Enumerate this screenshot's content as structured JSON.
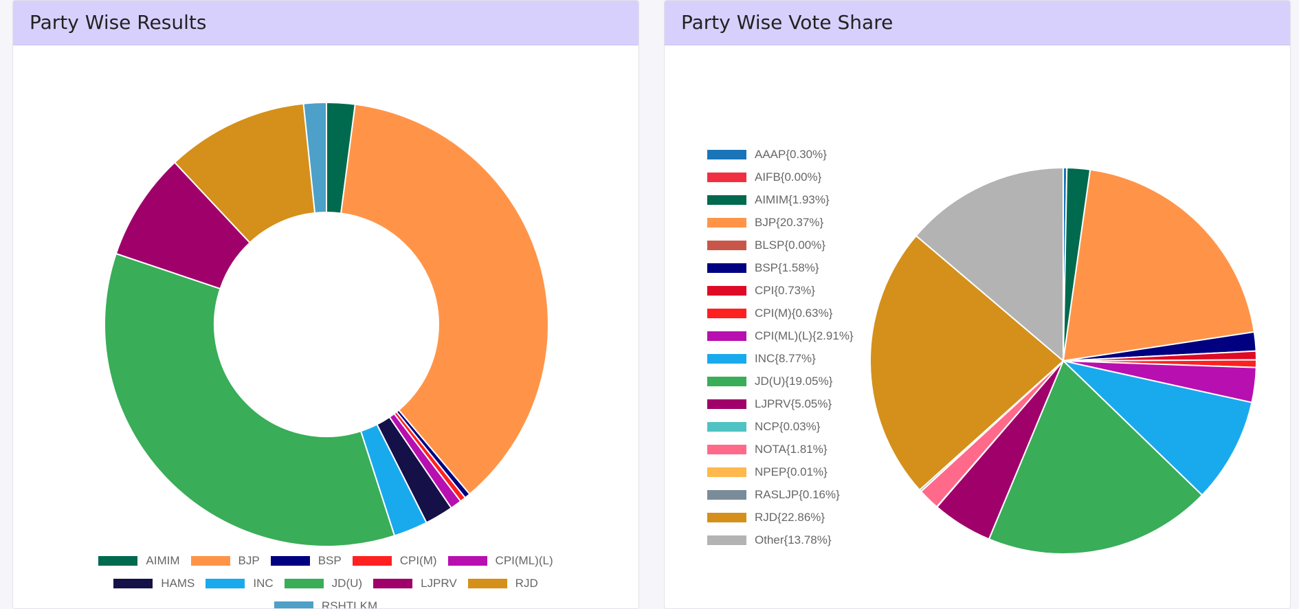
{
  "chart_data": [
    {
      "type": "donut",
      "title": "Party Wise Results",
      "categories": [
        "AIMIM",
        "BJP",
        "BSP",
        "CPI(M)",
        "CPI(ML)(L)",
        "HAMS",
        "INC",
        "JD(U)",
        "LJPRV",
        "RJD",
        "RSHTLKM"
      ],
      "values": [
        5,
        89,
        1,
        1,
        2,
        5,
        6,
        85,
        19,
        25,
        4
      ],
      "colors": [
        "#006a4e",
        "#ff9448",
        "#000080",
        "#ff2020",
        "#b80fb0",
        "#151148",
        "#19aaed",
        "#39ad58",
        "#a0006a",
        "#d4901a",
        "#4da0c8"
      ],
      "legend": "bottom"
    },
    {
      "type": "pie",
      "title": "Party Wise Vote Share",
      "categories": [
        "AAAP{0.30%}",
        "AIFB{0.00%}",
        "AIMIM{1.93%}",
        "BJP{20.37%}",
        "BLSP{0.00%}",
        "BSP{1.58%}",
        "CPI{0.73%}",
        "CPI(M){0.63%}",
        "CPI(ML)(L){2.91%}",
        "INC{8.77%}",
        "JD(U){19.05%}",
        "LJPRV{5.05%}",
        "NCP{0.03%}",
        "NOTA{1.81%}",
        "NPEP{0.01%}",
        "RASLJP{0.16%}",
        "RJD{22.86%}",
        "Other{13.78%}"
      ],
      "values": [
        0.3,
        0.0,
        1.93,
        20.37,
        0.0,
        1.58,
        0.73,
        0.63,
        2.91,
        8.77,
        19.05,
        5.05,
        0.03,
        1.81,
        0.01,
        0.16,
        22.86,
        13.78
      ],
      "colors": [
        "#1a75b8",
        "#f03040",
        "#006a4e",
        "#ff9448",
        "#c8574a",
        "#000080",
        "#de0a26",
        "#ff2020",
        "#b80fb0",
        "#19aaed",
        "#39ad58",
        "#a0006a",
        "#4fc3c3",
        "#ff6a8a",
        "#ffb84d",
        "#7a8c9a",
        "#d4901a",
        "#b3b3b3"
      ],
      "legend": "left"
    }
  ]
}
